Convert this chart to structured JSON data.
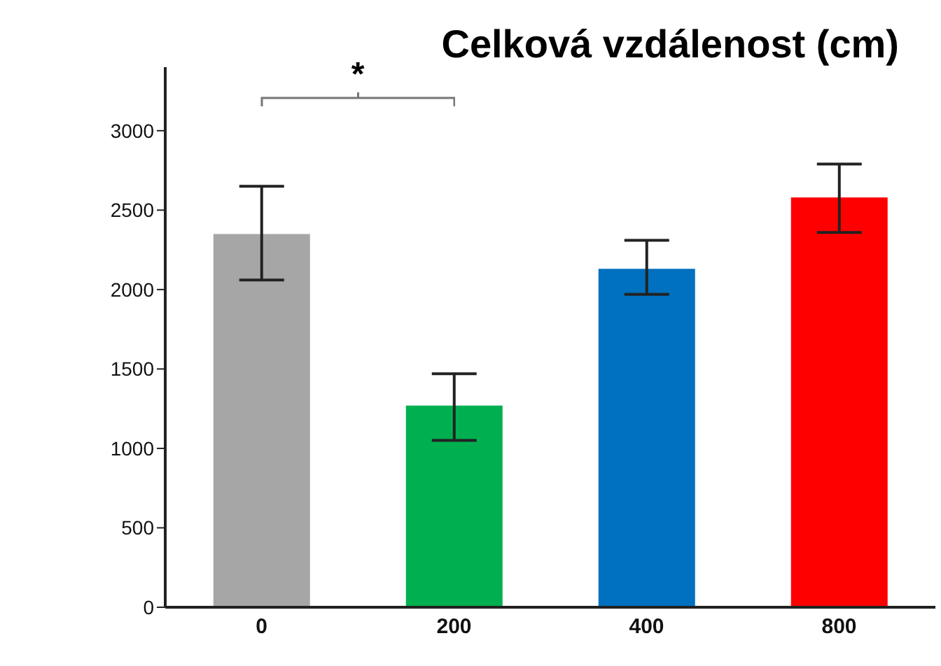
{
  "chart_data": {
    "type": "bar",
    "title": "Celková vzdálenost (cm)",
    "categories": [
      "0",
      "200",
      "400",
      "800"
    ],
    "values": [
      2350,
      1270,
      2130,
      2580
    ],
    "colors": [
      "#a6a6a6",
      "#00b050",
      "#0070c0",
      "#ff0000"
    ],
    "errors": [
      [
        2060,
        2650
      ],
      [
        1050,
        1470
      ],
      [
        1970,
        2310
      ],
      [
        2360,
        2790
      ]
    ],
    "ylim": [
      0,
      3400
    ],
    "yticks": [
      0,
      500,
      1000,
      1500,
      2000,
      2500,
      3000
    ],
    "annotations": [
      "*"
    ]
  }
}
